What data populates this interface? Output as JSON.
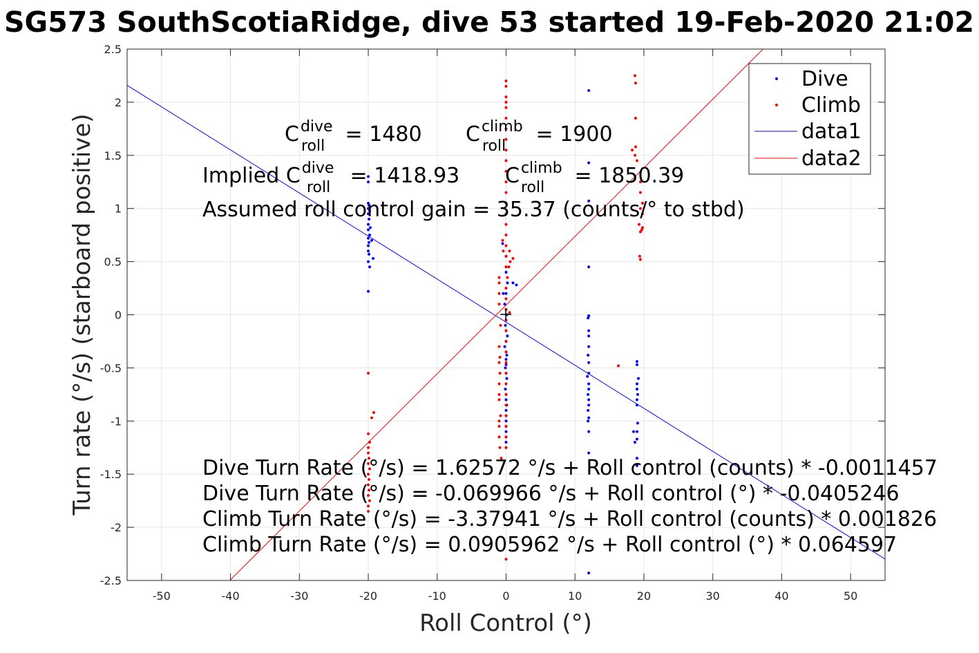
{
  "chart_data": {
    "type": "scatter",
    "title": "SG573 SouthScotiaRidge, dive 53 started 19-Feb-2020 21:02",
    "xlabel": "Roll Control (°)",
    "ylabel": "Turn rate (°/s) (starboard positive)",
    "xlim": [
      -55,
      55
    ],
    "ylim": [
      -2.5,
      2.5
    ],
    "xticks": [
      "-50",
      "-40",
      "-30",
      "-20",
      "-10",
      "0",
      "10",
      "20",
      "30",
      "40",
      "50"
    ],
    "yticks": [
      "-2.5",
      "-2",
      "-1.5",
      "-1",
      "-0.5",
      "0",
      "0.5",
      "1",
      "1.5",
      "2",
      "2.5"
    ],
    "grid": true,
    "legend_position": "top-right",
    "legend": [
      "Dive",
      "Climb",
      "data1",
      "data2"
    ],
    "annotations": {
      "c_dive_base": "C",
      "c_dive_sup": "dive",
      "c_dive_sub": "roll",
      "c_dive_val": " = 1480",
      "c_climb_base": "C",
      "c_climb_sup": "climb",
      "c_climb_sub": "roll",
      "c_climb_val": " = 1900",
      "implied_prefix": "Implied C",
      "implied_dive_sup": "dive",
      "implied_dive_sub": "roll",
      "implied_dive_val": " = 1418.93",
      "implied_climb_base": "C",
      "implied_climb_sup": "climb",
      "implied_climb_sub": "roll",
      "implied_climb_val": " = 1850.39",
      "gain": "Assumed roll control gain = 35.37 (counts/° to stbd)",
      "eq1": "Dive Turn Rate (°/s) = 1.62572 °/s + Roll control (counts) * -0.0011457",
      "eq2": "Dive Turn Rate (°/s) = -0.069966 °/s + Roll control (°) * -0.0405246",
      "eq3": "Climb Turn Rate (°/s) = -3.37941 °/s + Roll control (counts) * 0.001826",
      "eq4": "Climb Turn Rate (°/s) = 0.0905962 °/s + Roll control (°) * 0.064597"
    },
    "colors": {
      "dive": "#0000ff",
      "climb": "#ff0000",
      "axis": "#262626",
      "grid": "#e6e6e6"
    },
    "lines": [
      {
        "name": "data1",
        "color": "#0000ff",
        "intercept": -0.069966,
        "slope": -0.0405246
      },
      {
        "name": "data2",
        "color": "#ff0000",
        "intercept": 0.0905962,
        "slope": 0.064597
      }
    ],
    "series": [
      {
        "name": "Dive",
        "color": "#0000ff",
        "points": [
          [
            -20,
            1.3
          ],
          [
            -20,
            1.25
          ],
          [
            -20,
            1.05
          ],
          [
            -19.9,
            1.03
          ],
          [
            -20,
            1.0
          ],
          [
            -19.8,
            0.98
          ],
          [
            -20,
            0.95
          ],
          [
            -19.9,
            0.9
          ],
          [
            -20,
            0.85
          ],
          [
            -19.7,
            0.82
          ],
          [
            -20,
            0.8
          ],
          [
            -19.8,
            0.75
          ],
          [
            -20,
            0.72
          ],
          [
            -19.5,
            0.7
          ],
          [
            -19.9,
            0.68
          ],
          [
            -20,
            0.65
          ],
          [
            -20,
            0.6
          ],
          [
            -19.9,
            0.57
          ],
          [
            -19.3,
            0.53
          ],
          [
            -20,
            0.5
          ],
          [
            -19.8,
            0.45
          ],
          [
            -20,
            0.22
          ],
          [
            -0.5,
            0.67
          ],
          [
            0,
            0.55
          ],
          [
            0,
            0.4
          ],
          [
            0.2,
            0.3
          ],
          [
            0,
            0.2
          ],
          [
            -0.2,
            0.1
          ],
          [
            0,
            0.05
          ],
          [
            0.1,
            0
          ],
          [
            0,
            -0.05
          ],
          [
            -0.1,
            -0.1
          ],
          [
            0,
            -0.15
          ],
          [
            0.2,
            -0.2
          ],
          [
            0,
            -0.25
          ],
          [
            -0.2,
            -0.3
          ],
          [
            0,
            -0.35
          ],
          [
            0.1,
            -0.38
          ],
          [
            0,
            -0.42
          ],
          [
            0,
            -0.47
          ],
          [
            -0.1,
            -0.5
          ],
          [
            0,
            -0.55
          ],
          [
            0.1,
            -0.6
          ],
          [
            0,
            -0.65
          ],
          [
            -0.1,
            -0.7
          ],
          [
            0,
            -0.75
          ],
          [
            0,
            -0.8
          ],
          [
            0.1,
            -0.85
          ],
          [
            0,
            -0.9
          ],
          [
            0,
            -0.95
          ],
          [
            0,
            -1.0
          ],
          [
            0,
            -1.05
          ],
          [
            0,
            -1.1
          ],
          [
            0,
            -1.15
          ],
          [
            0,
            -1.2
          ],
          [
            0,
            -1.25
          ],
          [
            1.5,
            0.28
          ],
          [
            1,
            0.3
          ],
          [
            -0.4,
            0.2
          ],
          [
            12,
            2.11
          ],
          [
            12,
            1.43
          ],
          [
            12,
            1.07
          ],
          [
            12,
            0.45
          ],
          [
            12,
            -0.01
          ],
          [
            11.9,
            -0.03
          ],
          [
            12,
            -0.15
          ],
          [
            12,
            -0.2
          ],
          [
            12,
            -0.3
          ],
          [
            11.9,
            -0.38
          ],
          [
            12,
            -0.45
          ],
          [
            12,
            -0.55
          ],
          [
            11.8,
            -0.58
          ],
          [
            12,
            -0.65
          ],
          [
            12,
            -0.7
          ],
          [
            11.9,
            -0.75
          ],
          [
            12,
            -0.8
          ],
          [
            12,
            -0.85
          ],
          [
            11.9,
            -0.9
          ],
          [
            12,
            -0.97
          ],
          [
            11.9,
            -1.0
          ],
          [
            12,
            -1.1
          ],
          [
            12,
            -1.3
          ],
          [
            12,
            -2.43
          ],
          [
            19,
            -0.44
          ],
          [
            19,
            -0.47
          ],
          [
            19.2,
            -0.6
          ],
          [
            19,
            -0.65
          ],
          [
            19,
            -0.7
          ],
          [
            19.1,
            -0.75
          ],
          [
            19,
            -0.8
          ],
          [
            19,
            -0.85
          ],
          [
            19.1,
            -1.02
          ],
          [
            19,
            -1.1
          ],
          [
            18.5,
            -1.1
          ],
          [
            19,
            -1.17
          ],
          [
            18.7,
            -1.2
          ],
          [
            19,
            -1.35
          ],
          [
            19,
            -1.42
          ]
        ]
      },
      {
        "name": "Climb",
        "color": "#ff0000",
        "points": [
          [
            0,
            2.2
          ],
          [
            0,
            2.15
          ],
          [
            0,
            2.05
          ],
          [
            0,
            2.0
          ],
          [
            0,
            1.95
          ],
          [
            0,
            1.85
          ],
          [
            0,
            1.75
          ],
          [
            0,
            1.65
          ],
          [
            0,
            1.55
          ],
          [
            0,
            1.45
          ],
          [
            0,
            1.35
          ],
          [
            0,
            1.25
          ],
          [
            0,
            1.15
          ],
          [
            0,
            1.05
          ],
          [
            0,
            0.95
          ],
          [
            0,
            0.85
          ],
          [
            0,
            0.75
          ],
          [
            0,
            0.65
          ],
          [
            0,
            0.55
          ],
          [
            0,
            0.45
          ],
          [
            0.2,
            0.35
          ],
          [
            0,
            0.25
          ],
          [
            0,
            0.15
          ],
          [
            0,
            0.05
          ],
          [
            0.5,
            0.02
          ],
          [
            0,
            -0.05
          ],
          [
            0,
            -0.15
          ],
          [
            0,
            -0.25
          ],
          [
            0,
            -0.35
          ],
          [
            0,
            -0.45
          ],
          [
            0,
            -0.55
          ],
          [
            0,
            -0.65
          ],
          [
            0,
            -0.75
          ],
          [
            0,
            -0.85
          ],
          [
            0,
            -0.95
          ],
          [
            0,
            -1.05
          ],
          [
            0,
            -1.15
          ],
          [
            0,
            -1.25
          ],
          [
            0,
            -2.3
          ],
          [
            -1,
            0.35
          ],
          [
            -1,
            0.3
          ],
          [
            -1,
            0.2
          ],
          [
            -1,
            0.1
          ],
          [
            -0.8,
            -0.1
          ],
          [
            -1,
            -0.3
          ],
          [
            -0.9,
            -0.4
          ],
          [
            -1,
            -0.45
          ],
          [
            -0.9,
            -0.55
          ],
          [
            -1,
            -0.65
          ],
          [
            -1,
            -0.75
          ],
          [
            -1,
            -0.8
          ],
          [
            -0.8,
            -0.95
          ],
          [
            -1,
            -1.0
          ],
          [
            -1,
            -1.05
          ],
          [
            -1,
            -1.15
          ],
          [
            -0.9,
            -1.25
          ],
          [
            -0.7,
            -1.35
          ],
          [
            -0.5,
            0.7
          ],
          [
            -0.4,
            0.6
          ],
          [
            0.5,
            0.6
          ],
          [
            0.6,
            0.5
          ],
          [
            1,
            0.53
          ],
          [
            0.4,
            0.45
          ],
          [
            -20,
            -0.55
          ],
          [
            -20,
            -1.12
          ],
          [
            -19.8,
            -1.2
          ],
          [
            -20,
            -1.25
          ],
          [
            -20,
            -1.3
          ],
          [
            -19.9,
            -1.35
          ],
          [
            -20,
            -1.4
          ],
          [
            -19.8,
            -1.45
          ],
          [
            -20,
            -1.5
          ],
          [
            -19.9,
            -1.55
          ],
          [
            -20,
            -1.6
          ],
          [
            -19.9,
            -1.65
          ],
          [
            -20,
            -1.7
          ],
          [
            -19.8,
            -1.75
          ],
          [
            -20,
            -1.8
          ],
          [
            -20,
            -1.85
          ],
          [
            -19.5,
            -0.97
          ],
          [
            -19.2,
            -0.92
          ],
          [
            18.7,
            2.25
          ],
          [
            18.8,
            2.18
          ],
          [
            18.8,
            1.85
          ],
          [
            18.8,
            1.58
          ],
          [
            18.3,
            1.55
          ],
          [
            18.7,
            1.5
          ],
          [
            19,
            1.45
          ],
          [
            19.5,
            1.25
          ],
          [
            19.5,
            1.15
          ],
          [
            19.8,
            1.05
          ],
          [
            19.5,
            1.0
          ],
          [
            19.8,
            0.95
          ],
          [
            19.3,
            0.85
          ],
          [
            19.8,
            0.82
          ],
          [
            19.7,
            0.8
          ],
          [
            19.5,
            0.78
          ],
          [
            19.4,
            0.55
          ],
          [
            19.5,
            0.52
          ],
          [
            16.3,
            -0.48
          ]
        ]
      }
    ]
  }
}
